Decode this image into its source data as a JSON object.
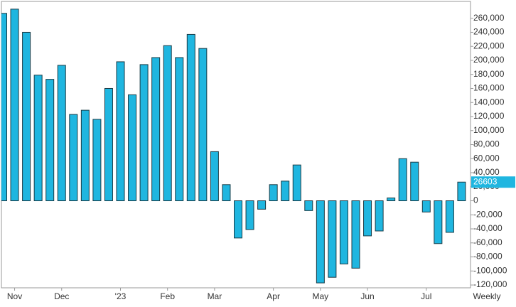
{
  "chart_data": {
    "type": "bar",
    "categories": [
      null,
      "Nov",
      null,
      null,
      null,
      "Dec",
      null,
      null,
      null,
      null,
      "'23",
      null,
      null,
      null,
      "Feb",
      null,
      null,
      null,
      "Mar",
      null,
      null,
      null,
      null,
      "Apr",
      null,
      null,
      null,
      "May",
      null,
      null,
      null,
      "Jun",
      null,
      null,
      null,
      null,
      "Jul",
      null,
      null,
      null
    ],
    "values": [
      267000,
      273000,
      240000,
      179000,
      173000,
      193000,
      123000,
      129000,
      116000,
      160000,
      198000,
      151000,
      194000,
      204000,
      221000,
      204000,
      237000,
      217000,
      70000,
      23000,
      -53000,
      -41000,
      -12000,
      23000,
      28000,
      51000,
      -14000,
      -117000,
      -109000,
      -90000,
      -96000,
      -50000,
      -43000,
      4000,
      60000,
      55000,
      -16000,
      -61000,
      -45000,
      26603
    ],
    "color": "#1fb6e0",
    "period_label": "Weekly",
    "ylim": [
      -124000,
      284000
    ],
    "yticks": [
      {
        "value": -120000,
        "label": "-120,000"
      },
      {
        "value": -100000,
        "label": "-100,000"
      },
      {
        "value": -80000,
        "label": "-80,000"
      },
      {
        "value": -60000,
        "label": "-60,000"
      },
      {
        "value": -40000,
        "label": "-40,000"
      },
      {
        "value": -20000,
        "label": "-20,000"
      },
      0,
      {
        "value": 20000,
        "label": "20,000"
      },
      {
        "value": 40000,
        "label": "40,000"
      },
      {
        "value": 60000,
        "label": "60,000"
      },
      {
        "value": 80000,
        "label": "80,000"
      },
      {
        "value": 100000,
        "label": "100,000"
      },
      {
        "value": 120000,
        "label": "120,000"
      },
      {
        "value": 140000,
        "label": "140,000"
      },
      {
        "value": 160000,
        "label": "160,000"
      },
      {
        "value": 180000,
        "label": "180,000"
      },
      {
        "value": 200000,
        "label": "200,000"
      },
      {
        "value": 220000,
        "label": "220,000"
      },
      {
        "value": 240000,
        "label": "240,000"
      },
      {
        "value": 260000,
        "label": "260,000"
      }
    ]
  }
}
